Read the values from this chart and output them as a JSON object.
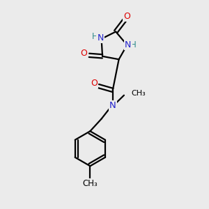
{
  "bg_color": "#ebebeb",
  "atom_colors": {
    "C": "#000000",
    "N": "#2222cc",
    "O": "#dd0000",
    "H": "#2e8b8b"
  },
  "bond_color": "#000000",
  "bond_width": 1.6,
  "figsize": [
    3.0,
    3.0
  ],
  "dpi": 100
}
